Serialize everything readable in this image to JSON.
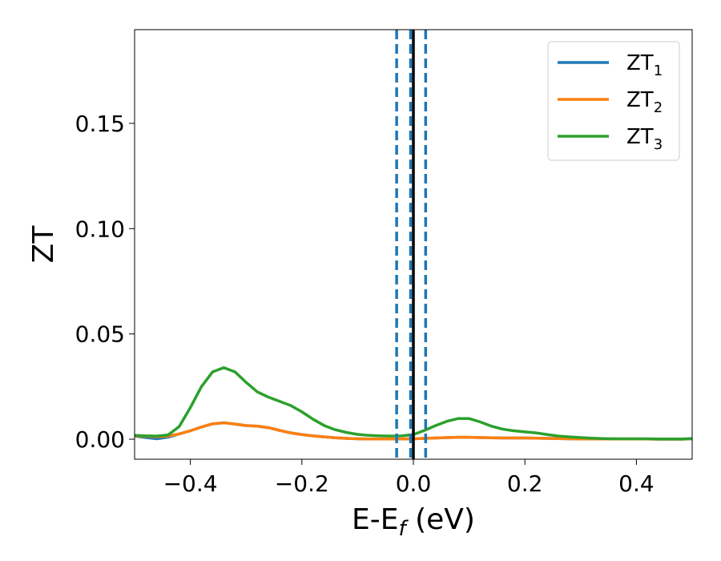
{
  "chart_data": {
    "type": "line",
    "xlabel": "E-E_f (eV)",
    "ylabel": "ZT",
    "xlim": [
      -0.5,
      0.5
    ],
    "ylim": [
      -0.0095,
      0.1945
    ],
    "xticks": [
      -0.4,
      -0.2,
      0.0,
      0.2,
      0.4
    ],
    "xtick_labels": [
      "−0.4",
      "−0.2",
      "0.0",
      "0.2",
      "0.4"
    ],
    "yticks": [
      0.0,
      0.05,
      0.1,
      0.15
    ],
    "ytick_labels": [
      "0.00",
      "0.05",
      "0.10",
      "0.15"
    ],
    "grid": false,
    "legend_position": "top-right",
    "series": [
      {
        "name": "ZT1",
        "name_base": "ZT",
        "name_sub": "1",
        "color": "#1f77b4",
        "x": [
          -0.5,
          -0.48,
          -0.46,
          -0.44,
          -0.42,
          -0.4,
          -0.38,
          -0.36,
          -0.34,
          -0.32,
          -0.3,
          -0.28,
          -0.26,
          -0.24,
          -0.22,
          -0.2,
          -0.18,
          -0.16,
          -0.14,
          -0.12,
          -0.1,
          -0.08,
          -0.06,
          -0.04,
          -0.02,
          0.0,
          0.02,
          0.04,
          0.06,
          0.08,
          0.1,
          0.12,
          0.14,
          0.16,
          0.18,
          0.2,
          0.22,
          0.24,
          0.26,
          0.28,
          0.3,
          0.32,
          0.34,
          0.36,
          0.38,
          0.4,
          0.42,
          0.44,
          0.46,
          0.48,
          0.5
        ],
        "y": [
          0.0015,
          0.0008,
          0.0002,
          0.001,
          0.0025,
          0.004,
          0.0058,
          0.0073,
          0.0078,
          0.0072,
          0.0065,
          0.0062,
          0.0055,
          0.0042,
          0.003,
          0.0022,
          0.0016,
          0.0011,
          0.0007,
          0.0004,
          0.0002,
          0.0001,
          0.0001,
          0.0001,
          0.0001,
          0.0002,
          0.0004,
          0.0006,
          0.0008,
          0.0009,
          0.0009,
          0.0008,
          0.0007,
          0.0006,
          0.0006,
          0.0006,
          0.0005,
          0.0004,
          0.0003,
          0.0002,
          0.0001,
          0.0001,
          0.0001,
          0.0001,
          0.0001,
          0.0001,
          0.0001,
          0.0,
          0.0,
          0.0,
          0.0002
        ]
      },
      {
        "name": "ZT2",
        "name_base": "ZT",
        "name_sub": "2",
        "color": "#ff7f0e",
        "x": [
          -0.5,
          -0.48,
          -0.46,
          -0.44,
          -0.42,
          -0.4,
          -0.38,
          -0.36,
          -0.34,
          -0.32,
          -0.3,
          -0.28,
          -0.26,
          -0.24,
          -0.22,
          -0.2,
          -0.18,
          -0.16,
          -0.14,
          -0.12,
          -0.1,
          -0.08,
          -0.06,
          -0.04,
          -0.02,
          0.0,
          0.02,
          0.04,
          0.06,
          0.08,
          0.1,
          0.12,
          0.14,
          0.16,
          0.18,
          0.2,
          0.22,
          0.24,
          0.26,
          0.28,
          0.3,
          0.32,
          0.34,
          0.36,
          0.38,
          0.4,
          0.42,
          0.44,
          0.46,
          0.48,
          0.5
        ],
        "y": [
          0.0016,
          0.0014,
          0.0012,
          0.0015,
          0.0025,
          0.004,
          0.0058,
          0.0073,
          0.0078,
          0.0072,
          0.0065,
          0.0062,
          0.0055,
          0.0042,
          0.003,
          0.0022,
          0.0016,
          0.0011,
          0.0007,
          0.0004,
          0.0002,
          0.0001,
          0.0001,
          0.0001,
          0.0001,
          0.0002,
          0.0004,
          0.0006,
          0.0008,
          0.0009,
          0.0009,
          0.0008,
          0.0007,
          0.0006,
          0.0006,
          0.0006,
          0.0005,
          0.0004,
          0.0003,
          0.0002,
          0.0001,
          0.0001,
          0.0001,
          0.0001,
          0.0001,
          0.0001,
          0.0001,
          0.0,
          0.0,
          0.0,
          0.0002
        ]
      },
      {
        "name": "ZT3",
        "name_base": "ZT",
        "name_sub": "3",
        "color": "#2ca02c",
        "x": [
          -0.5,
          -0.48,
          -0.46,
          -0.44,
          -0.42,
          -0.4,
          -0.38,
          -0.36,
          -0.34,
          -0.32,
          -0.3,
          -0.28,
          -0.26,
          -0.24,
          -0.22,
          -0.2,
          -0.18,
          -0.16,
          -0.14,
          -0.12,
          -0.1,
          -0.08,
          -0.06,
          -0.04,
          -0.02,
          0.0,
          0.02,
          0.04,
          0.06,
          0.08,
          0.1,
          0.12,
          0.14,
          0.16,
          0.18,
          0.2,
          0.22,
          0.24,
          0.26,
          0.28,
          0.3,
          0.32,
          0.34,
          0.36,
          0.38,
          0.4,
          0.42,
          0.44,
          0.46,
          0.48,
          0.5
        ],
        "y": [
          0.0018,
          0.0016,
          0.0015,
          0.002,
          0.006,
          0.015,
          0.025,
          0.032,
          0.034,
          0.032,
          0.027,
          0.0225,
          0.02,
          0.018,
          0.016,
          0.013,
          0.0095,
          0.0065,
          0.0045,
          0.0032,
          0.0023,
          0.0018,
          0.0016,
          0.0015,
          0.0016,
          0.0022,
          0.0042,
          0.0065,
          0.0085,
          0.0098,
          0.0098,
          0.0082,
          0.0062,
          0.0048,
          0.004,
          0.0035,
          0.003,
          0.0022,
          0.0015,
          0.0011,
          0.0008,
          0.0005,
          0.0003,
          0.0002,
          0.0002,
          0.0002,
          0.0002,
          0.0001,
          0.0001,
          0.0001,
          0.0003
        ]
      }
    ],
    "vlines": [
      {
        "x": 0.0,
        "color": "#000000",
        "style": "solid"
      },
      {
        "x": -0.03,
        "color": "#1f77b4",
        "style": "dashed"
      },
      {
        "x": -0.005,
        "color": "#1f77b4",
        "style": "dashed"
      },
      {
        "x": 0.022,
        "color": "#1f77b4",
        "style": "dashed"
      }
    ]
  }
}
